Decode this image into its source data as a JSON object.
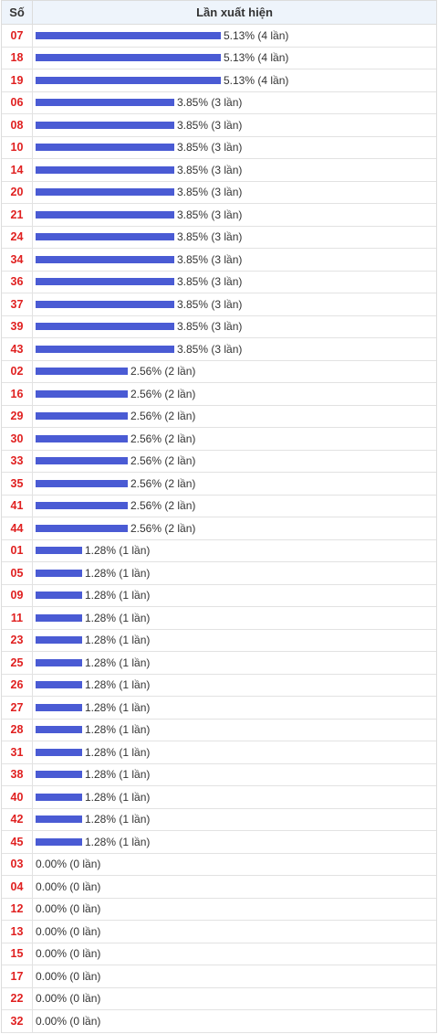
{
  "chart_data": {
    "type": "bar",
    "orientation": "horizontal",
    "headers": {
      "number": "Số",
      "value": "Lần xuất hiện"
    },
    "colors": {
      "bar": "#4a5bd4",
      "number": "#e02020"
    },
    "rows": [
      {
        "number": "07",
        "percent": 5.13,
        "count": 4,
        "label": "5.13% (4 lần)"
      },
      {
        "number": "18",
        "percent": 5.13,
        "count": 4,
        "label": "5.13% (4 lần)"
      },
      {
        "number": "19",
        "percent": 5.13,
        "count": 4,
        "label": "5.13% (4 lần)"
      },
      {
        "number": "06",
        "percent": 3.85,
        "count": 3,
        "label": "3.85% (3 lần)"
      },
      {
        "number": "08",
        "percent": 3.85,
        "count": 3,
        "label": "3.85% (3 lần)"
      },
      {
        "number": "10",
        "percent": 3.85,
        "count": 3,
        "label": "3.85% (3 lần)"
      },
      {
        "number": "14",
        "percent": 3.85,
        "count": 3,
        "label": "3.85% (3 lần)"
      },
      {
        "number": "20",
        "percent": 3.85,
        "count": 3,
        "label": "3.85% (3 lần)"
      },
      {
        "number": "21",
        "percent": 3.85,
        "count": 3,
        "label": "3.85% (3 lần)"
      },
      {
        "number": "24",
        "percent": 3.85,
        "count": 3,
        "label": "3.85% (3 lần)"
      },
      {
        "number": "34",
        "percent": 3.85,
        "count": 3,
        "label": "3.85% (3 lần)"
      },
      {
        "number": "36",
        "percent": 3.85,
        "count": 3,
        "label": "3.85% (3 lần)"
      },
      {
        "number": "37",
        "percent": 3.85,
        "count": 3,
        "label": "3.85% (3 lần)"
      },
      {
        "number": "39",
        "percent": 3.85,
        "count": 3,
        "label": "3.85% (3 lần)"
      },
      {
        "number": "43",
        "percent": 3.85,
        "count": 3,
        "label": "3.85% (3 lần)"
      },
      {
        "number": "02",
        "percent": 2.56,
        "count": 2,
        "label": "2.56% (2 lần)"
      },
      {
        "number": "16",
        "percent": 2.56,
        "count": 2,
        "label": "2.56% (2 lần)"
      },
      {
        "number": "29",
        "percent": 2.56,
        "count": 2,
        "label": "2.56% (2 lần)"
      },
      {
        "number": "30",
        "percent": 2.56,
        "count": 2,
        "label": "2.56% (2 lần)"
      },
      {
        "number": "33",
        "percent": 2.56,
        "count": 2,
        "label": "2.56% (2 lần)"
      },
      {
        "number": "35",
        "percent": 2.56,
        "count": 2,
        "label": "2.56% (2 lần)"
      },
      {
        "number": "41",
        "percent": 2.56,
        "count": 2,
        "label": "2.56% (2 lần)"
      },
      {
        "number": "44",
        "percent": 2.56,
        "count": 2,
        "label": "2.56% (2 lần)"
      },
      {
        "number": "01",
        "percent": 1.28,
        "count": 1,
        "label": "1.28% (1 lần)"
      },
      {
        "number": "05",
        "percent": 1.28,
        "count": 1,
        "label": "1.28% (1 lần)"
      },
      {
        "number": "09",
        "percent": 1.28,
        "count": 1,
        "label": "1.28% (1 lần)"
      },
      {
        "number": "11",
        "percent": 1.28,
        "count": 1,
        "label": "1.28% (1 lần)"
      },
      {
        "number": "23",
        "percent": 1.28,
        "count": 1,
        "label": "1.28% (1 lần)"
      },
      {
        "number": "25",
        "percent": 1.28,
        "count": 1,
        "label": "1.28% (1 lần)"
      },
      {
        "number": "26",
        "percent": 1.28,
        "count": 1,
        "label": "1.28% (1 lần)"
      },
      {
        "number": "27",
        "percent": 1.28,
        "count": 1,
        "label": "1.28% (1 lần)"
      },
      {
        "number": "28",
        "percent": 1.28,
        "count": 1,
        "label": "1.28% (1 lần)"
      },
      {
        "number": "31",
        "percent": 1.28,
        "count": 1,
        "label": "1.28% (1 lần)"
      },
      {
        "number": "38",
        "percent": 1.28,
        "count": 1,
        "label": "1.28% (1 lần)"
      },
      {
        "number": "40",
        "percent": 1.28,
        "count": 1,
        "label": "1.28% (1 lần)"
      },
      {
        "number": "42",
        "percent": 1.28,
        "count": 1,
        "label": "1.28% (1 lần)"
      },
      {
        "number": "45",
        "percent": 1.28,
        "count": 1,
        "label": "1.28% (1 lần)"
      },
      {
        "number": "03",
        "percent": 0.0,
        "count": 0,
        "label": "0.00% (0 lần)"
      },
      {
        "number": "04",
        "percent": 0.0,
        "count": 0,
        "label": "0.00% (0 lần)"
      },
      {
        "number": "12",
        "percent": 0.0,
        "count": 0,
        "label": "0.00% (0 lần)"
      },
      {
        "number": "13",
        "percent": 0.0,
        "count": 0,
        "label": "0.00% (0 lần)"
      },
      {
        "number": "15",
        "percent": 0.0,
        "count": 0,
        "label": "0.00% (0 lần)"
      },
      {
        "number": "17",
        "percent": 0.0,
        "count": 0,
        "label": "0.00% (0 lần)"
      },
      {
        "number": "22",
        "percent": 0.0,
        "count": 0,
        "label": "0.00% (0 lần)"
      },
      {
        "number": "32",
        "percent": 0.0,
        "count": 0,
        "label": "0.00% (0 lần)"
      }
    ]
  }
}
